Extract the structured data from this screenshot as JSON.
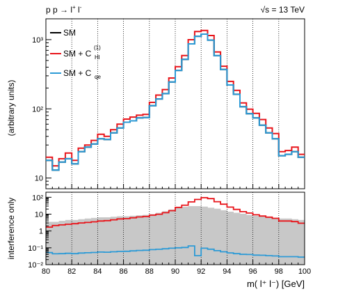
{
  "header": {
    "process_text": "p p → l",
    "process_sup": "+",
    "process_mid": " l",
    "process_sup2": "-",
    "energy_text": "√s = 13 TeV"
  },
  "legend": {
    "sm_label": "SM",
    "chl_label": "SM + C",
    "chl_sub": "Hl",
    "chl_sup": "(1)",
    "cqe_label": "SM + C",
    "cqe_sub": "qe"
  },
  "colors": {
    "sm": "#000000",
    "chl": "#e8141a",
    "cqe": "#2c9ad6",
    "band": "#c8c8c8"
  },
  "chart_data": [
    {
      "type": "line",
      "panel": "top",
      "ylabel": "(arbitrary units)",
      "yscale": "log",
      "ylim": [
        7,
        2000
      ],
      "xlim": [
        80,
        100
      ],
      "y_ticks": [
        "10",
        "10²",
        "10³"
      ],
      "bin_edges": [
        80,
        80.5,
        81,
        81.5,
        82,
        82.5,
        83,
        83.5,
        84,
        84.5,
        85,
        85.5,
        86,
        86.5,
        87,
        87.5,
        88,
        88.5,
        89,
        89.5,
        90,
        90.5,
        91,
        91.5,
        92,
        92.5,
        93,
        93.5,
        94,
        94.5,
        95,
        95.5,
        96,
        96.5,
        97,
        97.5,
        98,
        98.5,
        99,
        99.5,
        100
      ],
      "series": [
        {
          "name": "SM",
          "values": [
            18,
            13,
            17,
            19,
            16,
            24,
            28,
            31,
            37,
            36,
            45,
            53,
            64,
            67,
            74,
            75,
            111,
            139,
            166,
            244,
            359,
            519,
            868,
            1118,
            1201,
            985,
            587,
            371,
            221,
            162,
            107,
            85,
            74,
            58,
            45,
            37,
            21,
            22,
            24,
            20
          ]
        },
        {
          "name": "SM + C_Hl^(1)",
          "values": [
            20,
            15,
            19,
            23,
            18,
            27,
            30,
            35,
            43,
            40,
            50,
            60,
            71,
            76,
            81,
            83,
            124,
            158,
            190,
            279,
            407,
            588,
            998,
            1312,
            1358,
            1146,
            664,
            413,
            249,
            185,
            122,
            99,
            86,
            70,
            53,
            44,
            24,
            25,
            28,
            22
          ]
        },
        {
          "name": "SM + C_qe",
          "values": [
            18,
            13,
            17,
            19,
            16,
            24,
            28,
            31,
            37,
            36,
            45,
            53,
            64,
            67,
            74,
            75,
            111,
            139,
            166,
            244,
            359,
            519,
            868,
            1118,
            1201,
            985,
            587,
            371,
            221,
            162,
            107,
            85,
            74,
            58,
            45,
            37,
            21,
            22,
            24,
            20
          ]
        }
      ]
    },
    {
      "type": "area",
      "panel": "bottom",
      "ylabel": "interference only",
      "xlabel": "m( l⁺ l⁻) [GeV]",
      "yscale": "log",
      "ylim": [
        0.01,
        200
      ],
      "xlim": [
        80,
        100
      ],
      "x_ticks": [
        "80",
        "82",
        "84",
        "86",
        "88",
        "90",
        "92",
        "94",
        "96",
        "98",
        "100"
      ],
      "y_ticks": [
        "10⁻²",
        "10⁻¹",
        "1",
        "10",
        "10²"
      ],
      "bin_edges": [
        80,
        80.5,
        81,
        81.5,
        82,
        82.5,
        83,
        83.5,
        84,
        84.5,
        85,
        85.5,
        86,
        86.5,
        87,
        87.5,
        88,
        88.5,
        89,
        89.5,
        90,
        90.5,
        91,
        91.5,
        92,
        92.5,
        93,
        93.5,
        94,
        94.5,
        95,
        95.5,
        96,
        96.5,
        97,
        97.5,
        98,
        98.5,
        99,
        99.5,
        100
      ],
      "series": [
        {
          "name": "band",
          "values": [
            3.5,
            3.5,
            4,
            4.5,
            4.5,
            5,
            5.5,
            6,
            6.5,
            6.5,
            7,
            7.5,
            7.5,
            8,
            8.5,
            9,
            10,
            12,
            15,
            19,
            24,
            27,
            30,
            30,
            28,
            24,
            21,
            17,
            14,
            12,
            10.5,
            9,
            8,
            7.5,
            6.5,
            6,
            5.5,
            5.5,
            5,
            4.5
          ]
        },
        {
          "name": "SM + C_Hl^(1)",
          "values": [
            1.7,
            2.1,
            2.3,
            2.5,
            2.7,
            3.0,
            3.2,
            3.5,
            3.9,
            4.1,
            4.6,
            5.2,
            5.4,
            6.1,
            6.8,
            7.3,
            8.7,
            9.9,
            12.2,
            16,
            25,
            34,
            53,
            74,
            95,
            83,
            55,
            39,
            26,
            19,
            14,
            11.6,
            9.1,
            7.7,
            6.6,
            5.6,
            3.9,
            3.9,
            3.6,
            2.9
          ]
        },
        {
          "name": "SM + C_qe",
          "values": [
            0.052,
            0.044,
            0.045,
            0.047,
            0.045,
            0.049,
            0.051,
            0.053,
            0.056,
            0.055,
            0.058,
            0.061,
            0.062,
            0.066,
            0.07,
            0.072,
            0.078,
            0.082,
            0.088,
            0.095,
            0.1,
            0.105,
            0.13,
            0.034,
            0.095,
            0.083,
            0.068,
            0.058,
            0.05,
            0.045,
            0.041,
            0.04,
            0.037,
            0.036,
            0.034,
            0.033,
            0.03,
            0.03,
            0.03,
            0.028
          ]
        }
      ]
    }
  ]
}
